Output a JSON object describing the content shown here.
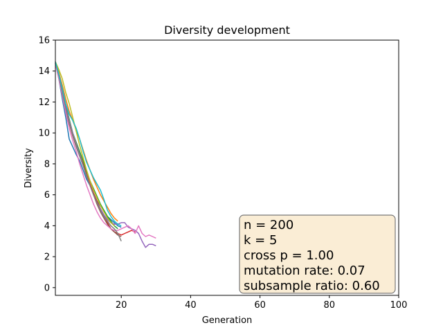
{
  "chart_data": {
    "type": "line",
    "title": "Diversity development",
    "xlabel": "Generation",
    "ylabel": "Diversity",
    "xlim": [
      1,
      100
    ],
    "ylim": [
      -0.5,
      16
    ],
    "xticks": [
      20,
      40,
      60,
      80,
      100
    ],
    "yticks": [
      0,
      2,
      4,
      6,
      8,
      10,
      12,
      14,
      16
    ],
    "grid": false,
    "legend": "none",
    "series": [
      {
        "color": "#1f77b4",
        "x": [
          1,
          2,
          3,
          4,
          5,
          6,
          7,
          8,
          9,
          10,
          11,
          12,
          13,
          14,
          15,
          16,
          17,
          18,
          19,
          20
        ],
        "y": [
          14.5,
          13.5,
          12.2,
          11.0,
          9.6,
          9.1,
          8.6,
          8.2,
          7.6,
          7.0,
          6.6,
          6.1,
          5.6,
          5.3,
          5.0,
          4.6,
          4.4,
          4.2,
          4.0,
          3.9
        ]
      },
      {
        "color": "#ff7f0e",
        "x": [
          1,
          2,
          3,
          4,
          5,
          6,
          7,
          8,
          9,
          10,
          11,
          12,
          13,
          14,
          15,
          16,
          17,
          18,
          19
        ],
        "y": [
          14.6,
          13.9,
          13.1,
          12.2,
          11.4,
          10.8,
          10.2,
          9.6,
          8.9,
          8.2,
          7.6,
          7.0,
          6.5,
          6.0,
          5.6,
          5.2,
          4.8,
          4.5,
          4.3
        ]
      },
      {
        "color": "#2ca02c",
        "x": [
          1,
          2,
          3,
          4,
          5,
          6,
          7,
          8,
          9,
          10,
          11,
          12,
          13,
          14,
          15,
          16,
          17,
          18,
          19
        ],
        "y": [
          14.6,
          13.8,
          12.8,
          11.8,
          10.9,
          10.0,
          9.4,
          8.8,
          8.2,
          7.5,
          6.9,
          6.4,
          5.9,
          5.4,
          5.0,
          4.6,
          4.3,
          4.0,
          3.8
        ]
      },
      {
        "color": "#d62728",
        "x": [
          1,
          2,
          3,
          4,
          5,
          6,
          7,
          8,
          9,
          10,
          11,
          12,
          13,
          14,
          15,
          16,
          17,
          18,
          19,
          20,
          21,
          22,
          23,
          24
        ],
        "y": [
          14.5,
          13.6,
          12.6,
          11.6,
          10.7,
          9.9,
          9.2,
          8.6,
          8.0,
          7.3,
          6.7,
          6.1,
          5.6,
          5.1,
          4.7,
          4.2,
          3.8,
          3.6,
          3.5,
          3.4,
          3.5,
          3.6,
          3.7,
          3.6
        ]
      },
      {
        "color": "#9467bd",
        "x": [
          1,
          2,
          3,
          4,
          5,
          6,
          7,
          8,
          9,
          10,
          11,
          12,
          13,
          14,
          15,
          16,
          17,
          18,
          19,
          20,
          21,
          22,
          23,
          24,
          25,
          26,
          27,
          28,
          29,
          30
        ],
        "y": [
          14.6,
          13.7,
          12.7,
          11.7,
          10.8,
          10.0,
          9.3,
          8.6,
          7.9,
          7.2,
          6.6,
          6.0,
          5.5,
          5.1,
          4.7,
          4.4,
          4.2,
          4.1,
          4.1,
          4.2,
          4.2,
          3.9,
          3.8,
          3.7,
          3.5,
          3.0,
          2.6,
          2.8,
          2.8,
          2.7
        ]
      },
      {
        "color": "#8c564b",
        "x": [
          1,
          2,
          3,
          4,
          5,
          6,
          7,
          8,
          9,
          10,
          11,
          12,
          13,
          14,
          15,
          16,
          17,
          18,
          19,
          20
        ],
        "y": [
          14.5,
          13.6,
          12.5,
          11.5,
          10.6,
          9.8,
          9.1,
          8.5,
          7.9,
          7.2,
          6.6,
          6.0,
          5.4,
          4.9,
          4.5,
          4.1,
          3.8,
          3.6,
          3.4,
          3.3
        ]
      },
      {
        "color": "#e377c2",
        "x": [
          1,
          2,
          3,
          4,
          5,
          6,
          7,
          8,
          9,
          10,
          11,
          12,
          13,
          14,
          15,
          16,
          17,
          18,
          19,
          20,
          21,
          22,
          23,
          24,
          25,
          26,
          27,
          28,
          29,
          30
        ],
        "y": [
          14.5,
          13.5,
          12.4,
          11.3,
          10.3,
          9.5,
          8.8,
          8.0,
          7.3,
          6.6,
          6.0,
          5.4,
          4.9,
          4.5,
          4.2,
          4.0,
          3.8,
          3.7,
          3.7,
          3.8,
          3.9,
          4.0,
          3.8,
          3.5,
          4.0,
          3.5,
          3.3,
          3.4,
          3.3,
          3.2
        ]
      },
      {
        "color": "#7f7f7f",
        "x": [
          1,
          2,
          3,
          4,
          5,
          6,
          7,
          8,
          9,
          10,
          11,
          12,
          13,
          14,
          15,
          16,
          17,
          18,
          19,
          20
        ],
        "y": [
          14.6,
          13.7,
          12.6,
          11.6,
          10.7,
          9.9,
          9.2,
          8.5,
          7.9,
          7.2,
          6.6,
          6.0,
          5.5,
          5.0,
          4.6,
          4.3,
          4.0,
          3.8,
          3.5,
          3.0
        ]
      },
      {
        "color": "#bcbd22",
        "x": [
          1,
          2,
          3,
          4,
          5,
          6,
          7,
          8,
          9,
          10,
          11,
          12,
          13,
          14,
          15,
          16,
          17,
          18
        ],
        "y": [
          14.6,
          14.1,
          13.5,
          12.6,
          11.9,
          11.0,
          10.1,
          9.2,
          8.4,
          7.6,
          6.9,
          6.3,
          5.8,
          5.3,
          4.9,
          4.5,
          4.2,
          4.0
        ]
      },
      {
        "color": "#17becf",
        "x": [
          1,
          2,
          3,
          4,
          5,
          6,
          7,
          8,
          9,
          10,
          11,
          12,
          13,
          14,
          15,
          16,
          17,
          18,
          19,
          20
        ],
        "y": [
          14.6,
          13.8,
          12.9,
          11.9,
          11.2,
          10.8,
          10.3,
          9.6,
          8.8,
          8.1,
          7.6,
          7.1,
          6.7,
          6.3,
          5.7,
          5.0,
          4.6,
          4.3,
          4.1,
          4.0
        ]
      }
    ],
    "annotation": {
      "lines": [
        "n = 200",
        "k = 5",
        "cross p = 1.00",
        "mutation rate: 0.07",
        "subsample ratio: 0.60"
      ],
      "box_color": "#f5deb3"
    }
  }
}
